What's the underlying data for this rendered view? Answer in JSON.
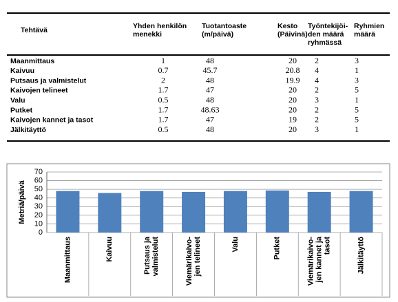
{
  "table": {
    "header": [
      [
        "Tehtävä"
      ],
      [
        "Yhden henkilön",
        "menekki"
      ],
      [
        "Tuotantoaste",
        "(m/päivä)"
      ],
      [
        "Kesto",
        "(Päivinä)"
      ],
      [
        "Työntekijöi-",
        "den määrä",
        "ryhmässä"
      ],
      [
        "Ryhmien",
        "määrä"
      ]
    ],
    "rows": [
      [
        "Maanmittaus",
        1,
        48,
        20,
        2,
        3
      ],
      [
        "Kaivuu",
        0.7,
        45.7,
        20.8,
        4,
        1
      ],
      [
        "Putsaus ja valmistelut",
        2,
        48,
        19.9,
        4,
        3
      ],
      [
        "Kaivojen telineet",
        1.7,
        47,
        20,
        2,
        5
      ],
      [
        "Valu",
        0.5,
        48,
        20,
        3,
        1
      ],
      [
        "Putket",
        1.7,
        48.63,
        20,
        2,
        5
      ],
      [
        "Kaivojen kannet ja tasot",
        1.7,
        47,
        19,
        2,
        5
      ],
      [
        "Jälkitäyttö",
        0.5,
        48,
        20,
        3,
        1
      ]
    ]
  },
  "chart_data": {
    "type": "bar",
    "y_label": "Metriä/päivä",
    "categories": [
      [
        "Maanmittaus"
      ],
      [
        "Kaivuu"
      ],
      [
        "Putsaus ja",
        "valmistelut"
      ],
      [
        "Viemärikaivo-",
        "jen telineet"
      ],
      [
        "Valu"
      ],
      [
        "Putket"
      ],
      [
        "Viemärikaivo-",
        "jen kannet ja",
        "tasot"
      ],
      [
        "Jälkitäyttö"
      ]
    ],
    "values": [
      48,
      45.7,
      48,
      47,
      48,
      48.63,
      47,
      48
    ],
    "color": "#4f81bd",
    "ylim": [
      0,
      70
    ],
    "yticks": [
      0,
      10,
      20,
      30,
      40,
      50,
      60,
      70
    ],
    "grid": true
  }
}
